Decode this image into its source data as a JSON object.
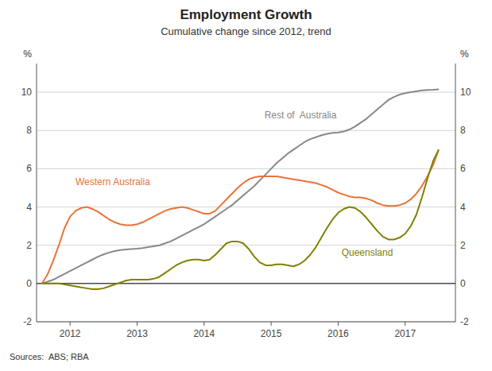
{
  "chart_data": {
    "type": "line",
    "title": "Employment Growth",
    "subtitle": "Cumulative change since 2012, trend",
    "ylabel": "%",
    "y2label": "%",
    "source": "Sources:  ABS; RBA",
    "xlim": [
      2011.5,
      2017.75
    ],
    "xticks": [
      2012,
      2013,
      2014,
      2015,
      2016,
      2017
    ],
    "ylim": [
      -2,
      11.5
    ],
    "yticks": [
      -2,
      0,
      2,
      4,
      6,
      8,
      10
    ],
    "y2lim": [
      -2,
      11.5
    ],
    "y2ticks": [
      -2,
      0,
      2,
      4,
      6,
      8,
      10
    ],
    "grid": true,
    "x": [
      2011.583,
      2011.667,
      2011.75,
      2011.833,
      2011.917,
      2012.0,
      2012.083,
      2012.167,
      2012.25,
      2012.333,
      2012.417,
      2012.5,
      2012.583,
      2012.667,
      2012.75,
      2012.833,
      2012.917,
      2013.0,
      2013.083,
      2013.167,
      2013.25,
      2013.333,
      2013.417,
      2013.5,
      2013.583,
      2013.667,
      2013.75,
      2013.833,
      2013.917,
      2014.0,
      2014.083,
      2014.167,
      2014.25,
      2014.333,
      2014.417,
      2014.5,
      2014.583,
      2014.667,
      2014.75,
      2014.833,
      2014.917,
      2015.0,
      2015.083,
      2015.167,
      2015.25,
      2015.333,
      2015.417,
      2015.5,
      2015.583,
      2015.667,
      2015.75,
      2015.833,
      2015.917,
      2016.0,
      2016.083,
      2016.167,
      2016.25,
      2016.333,
      2016.417,
      2016.5,
      2016.583,
      2016.667,
      2016.75,
      2016.833,
      2016.917,
      2017.0,
      2017.083,
      2017.167,
      2017.25,
      2017.333,
      2017.417,
      2017.5
    ],
    "series": [
      {
        "name": "Rest of  Australia",
        "color": "#888888",
        "values": [
          0.0,
          0.1,
          0.2,
          0.35,
          0.5,
          0.65,
          0.8,
          0.95,
          1.1,
          1.25,
          1.4,
          1.52,
          1.62,
          1.7,
          1.75,
          1.78,
          1.8,
          1.82,
          1.85,
          1.9,
          1.95,
          2.0,
          2.1,
          2.2,
          2.35,
          2.5,
          2.65,
          2.8,
          2.95,
          3.1,
          3.3,
          3.5,
          3.7,
          3.9,
          4.1,
          4.35,
          4.6,
          4.85,
          5.1,
          5.4,
          5.7,
          6.0,
          6.3,
          6.55,
          6.8,
          7.0,
          7.2,
          7.4,
          7.55,
          7.65,
          7.75,
          7.82,
          7.88,
          7.9,
          7.95,
          8.05,
          8.2,
          8.4,
          8.6,
          8.85,
          9.1,
          9.35,
          9.6,
          9.75,
          9.88,
          9.95,
          10.0,
          10.05,
          10.1,
          10.12,
          10.13,
          10.15
        ]
      },
      {
        "name": "Western Australia",
        "color": "#e8733a",
        "values": [
          0.0,
          0.5,
          1.2,
          2.0,
          2.9,
          3.5,
          3.8,
          3.95,
          4.0,
          3.9,
          3.75,
          3.55,
          3.35,
          3.2,
          3.1,
          3.05,
          3.05,
          3.1,
          3.2,
          3.35,
          3.5,
          3.65,
          3.8,
          3.9,
          3.95,
          4.0,
          3.95,
          3.85,
          3.75,
          3.65,
          3.65,
          3.8,
          4.1,
          4.4,
          4.7,
          5.0,
          5.25,
          5.45,
          5.55,
          5.6,
          5.6,
          5.6,
          5.6,
          5.55,
          5.5,
          5.45,
          5.4,
          5.35,
          5.3,
          5.25,
          5.15,
          5.05,
          4.9,
          4.75,
          4.65,
          4.55,
          4.5,
          4.5,
          4.45,
          4.35,
          4.2,
          4.1,
          4.05,
          4.05,
          4.1,
          4.2,
          4.4,
          4.7,
          5.1,
          5.6,
          6.2,
          7.0
        ]
      },
      {
        "name": "Queensland",
        "color": "#808000",
        "values": [
          0.0,
          0.0,
          0.0,
          0.0,
          -0.05,
          -0.1,
          -0.15,
          -0.2,
          -0.25,
          -0.3,
          -0.3,
          -0.25,
          -0.15,
          -0.05,
          0.05,
          0.15,
          0.2,
          0.2,
          0.2,
          0.2,
          0.25,
          0.35,
          0.55,
          0.75,
          0.95,
          1.1,
          1.2,
          1.25,
          1.25,
          1.2,
          1.25,
          1.5,
          1.8,
          2.1,
          2.2,
          2.2,
          2.1,
          1.8,
          1.4,
          1.1,
          0.95,
          0.95,
          1.0,
          1.0,
          0.95,
          0.9,
          1.0,
          1.2,
          1.5,
          1.9,
          2.4,
          2.9,
          3.35,
          3.7,
          3.9,
          4.0,
          3.95,
          3.75,
          3.45,
          3.1,
          2.75,
          2.45,
          2.3,
          2.3,
          2.4,
          2.6,
          3.0,
          3.6,
          4.5,
          5.5,
          6.4,
          7.0
        ]
      }
    ]
  }
}
